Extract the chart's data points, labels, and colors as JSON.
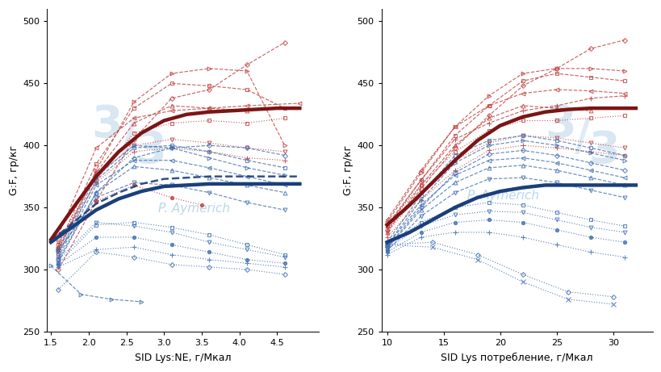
{
  "background_color": "#ffffff",
  "watermark_text": "P. Aymerich",
  "ylabel": "G:F, гр/кг",
  "xlabel1": "SID Lys:NE, г/Мкал",
  "xlabel2": "SID Lys потребление, г/Мкал",
  "ylim": [
    250,
    510
  ],
  "yticks": [
    250,
    300,
    350,
    400,
    450,
    500
  ],
  "xlim1": [
    1.45,
    5.05
  ],
  "xticks1": [
    1.5,
    2.0,
    2.5,
    3.0,
    3.5,
    4.0,
    4.5
  ],
  "xlim2": [
    9.5,
    33.5
  ],
  "xticks2": [
    10,
    15,
    20,
    25,
    30
  ],
  "male_color": "#7B1515",
  "female_color": "#1A3F7A",
  "male_color_light": "#C04040",
  "female_color_light": "#4070B0",
  "plot1_red_solid_x": [
    1.5,
    1.8,
    2.1,
    2.4,
    2.7,
    3.0,
    3.3,
    3.6,
    3.9,
    4.2,
    4.5,
    4.8
  ],
  "plot1_red_solid_y": [
    324,
    350,
    375,
    395,
    410,
    420,
    425,
    427,
    428,
    429,
    430,
    430
  ],
  "plot1_blue_solid_x": [
    1.5,
    1.8,
    2.1,
    2.4,
    2.7,
    3.0,
    3.3,
    3.6,
    3.9,
    4.2,
    4.5,
    4.8
  ],
  "plot1_blue_solid_y": [
    322,
    335,
    348,
    357,
    363,
    367,
    368,
    369,
    369,
    369,
    369,
    369
  ],
  "plot1_blue_dashed_x": [
    1.5,
    1.8,
    2.1,
    2.4,
    2.7,
    3.0,
    3.3,
    3.6,
    3.9,
    4.2,
    4.5,
    4.8
  ],
  "plot1_blue_dashed_y": [
    323,
    338,
    353,
    362,
    369,
    373,
    374,
    375,
    375,
    375,
    375,
    375
  ],
  "plot2_red_solid_x": [
    10,
    12,
    14,
    16,
    18,
    20,
    22,
    24,
    26,
    28,
    30,
    32
  ],
  "plot2_red_solid_y": [
    336,
    352,
    370,
    388,
    404,
    416,
    423,
    427,
    429,
    430,
    430,
    430
  ],
  "plot2_blue_solid_x": [
    10,
    12,
    14,
    16,
    18,
    20,
    22,
    24,
    26,
    28,
    30,
    32
  ],
  "plot2_blue_solid_y": [
    322,
    330,
    340,
    350,
    358,
    363,
    366,
    368,
    368,
    368,
    368,
    368
  ],
  "red_lines_plot1": [
    {
      "x": [
        1.6,
        2.1,
        2.6,
        3.1,
        3.6,
        4.1,
        4.6
      ],
      "y": [
        320,
        385,
        430,
        450,
        448,
        445,
        430
      ],
      "style": "--",
      "marker": "s",
      "ms": 3.5
    },
    {
      "x": [
        1.6,
        2.1,
        2.6,
        3.1,
        3.6,
        4.1,
        4.6
      ],
      "y": [
        315,
        380,
        435,
        458,
        462,
        460,
        400
      ],
      "style": "--",
      "marker": ">",
      "ms": 3.5
    },
    {
      "x": [
        1.6,
        2.1,
        2.6,
        3.1,
        3.6,
        4.1,
        4.6
      ],
      "y": [
        300,
        355,
        405,
        438,
        445,
        465,
        483
      ],
      "style": "--",
      "marker": "D",
      "ms": 3.0
    },
    {
      "x": [
        1.6,
        2.1,
        2.6,
        3.1,
        3.6,
        4.1,
        4.8
      ],
      "y": [
        328,
        398,
        422,
        428,
        430,
        432,
        434
      ],
      "style": "--",
      "marker": "<",
      "ms": 3.5
    },
    {
      "x": [
        1.6,
        2.1,
        2.6,
        3.1,
        3.6,
        4.1
      ],
      "y": [
        318,
        378,
        418,
        432,
        430,
        428
      ],
      "style": "--",
      "marker": "^",
      "ms": 3.5
    },
    {
      "x": [
        1.6,
        2.1,
        2.6,
        3.1,
        3.6,
        4.1,
        4.6
      ],
      "y": [
        312,
        372,
        410,
        418,
        420,
        418,
        422
      ],
      "style": ":",
      "marker": "s",
      "ms": 3.0
    },
    {
      "x": [
        1.6,
        2.1,
        2.6,
        3.1,
        3.6,
        4.1,
        4.6
      ],
      "y": [
        322,
        376,
        400,
        405,
        402,
        398,
        395
      ],
      "style": ":",
      "marker": "v",
      "ms": 3.5
    },
    {
      "x": [
        1.6,
        2.1,
        2.6,
        3.1,
        3.6,
        4.1,
        4.6
      ],
      "y": [
        318,
        370,
        395,
        398,
        395,
        390,
        388
      ],
      "style": ":",
      "marker": "+",
      "ms": 4.0
    },
    {
      "x": [
        1.6,
        2.1,
        2.6,
        3.1,
        3.5
      ],
      "y": [
        316,
        355,
        368,
        358,
        352
      ],
      "style": ":",
      "marker": "o",
      "ms": 3.0
    }
  ],
  "blue_lines_plot1": [
    {
      "x": [
        1.6,
        2.1,
        2.6,
        3.1,
        3.6,
        4.1,
        4.6
      ],
      "y": [
        313,
        372,
        398,
        400,
        395,
        388,
        382
      ],
      "style": "--",
      "marker": "s",
      "ms": 3.5
    },
    {
      "x": [
        1.6,
        2.1,
        2.6,
        3.1,
        3.6,
        4.1,
        4.6
      ],
      "y": [
        316,
        375,
        400,
        398,
        390,
        382,
        376
      ],
      "style": "--",
      "marker": ">",
      "ms": 3.5
    },
    {
      "x": [
        1.6,
        2.1,
        2.6,
        3.1,
        3.6,
        4.1,
        4.6
      ],
      "y": [
        308,
        362,
        390,
        398,
        400,
        398,
        392
      ],
      "style": "--",
      "marker": "D",
      "ms": 3.0
    },
    {
      "x": [
        1.6,
        2.1,
        2.6,
        3.1,
        3.6,
        4.1,
        4.6
      ],
      "y": [
        310,
        368,
        388,
        388,
        382,
        375,
        368
      ],
      "style": "--",
      "marker": "<",
      "ms": 3.5
    },
    {
      "x": [
        1.6,
        2.1,
        2.6,
        3.1,
        3.6,
        4.1,
        4.6
      ],
      "y": [
        306,
        362,
        383,
        380,
        374,
        368,
        362
      ],
      "style": "--",
      "marker": "^",
      "ms": 3.5
    },
    {
      "x": [
        1.6,
        2.1,
        2.6,
        3.1,
        3.6,
        4.1,
        4.6
      ],
      "y": [
        315,
        358,
        370,
        368,
        362,
        354,
        348
      ],
      "style": "--",
      "marker": "v",
      "ms": 3.5
    },
    {
      "x": [
        1.6,
        2.1,
        2.6,
        3.1,
        3.6,
        4.1,
        4.6
      ],
      "y": [
        305,
        336,
        338,
        334,
        328,
        320,
        312
      ],
      "style": ":",
      "marker": "s",
      "ms": 3.0
    },
    {
      "x": [
        1.6,
        2.1,
        2.6,
        3.1,
        3.6,
        4.1,
        4.6
      ],
      "y": [
        308,
        338,
        335,
        330,
        322,
        316,
        310
      ],
      "style": ":",
      "marker": "v",
      "ms": 3.5
    },
    {
      "x": [
        1.6,
        2.1,
        2.6,
        3.1,
        3.6,
        4.1,
        4.6
      ],
      "y": [
        304,
        326,
        326,
        320,
        314,
        308,
        305
      ],
      "style": ":",
      "marker": "o",
      "ms": 3.0
    },
    {
      "x": [
        1.6,
        2.1,
        2.6,
        3.1,
        3.6,
        4.1,
        4.6
      ],
      "y": [
        302,
        316,
        318,
        312,
        308,
        305,
        302
      ],
      "style": ":",
      "marker": "+",
      "ms": 4.0
    },
    {
      "x": [
        1.6,
        2.1,
        2.6,
        3.1,
        3.6,
        4.1,
        4.6
      ],
      "y": [
        284,
        314,
        310,
        304,
        302,
        300,
        296
      ],
      "style": ":",
      "marker": "D",
      "ms": 3.0
    },
    {
      "x": [
        1.5,
        1.9,
        2.3,
        2.7
      ],
      "y": [
        303,
        280,
        276,
        274
      ],
      "style": "--",
      "marker": ">",
      "ms": 3.5
    }
  ],
  "red_lines_plot2": [
    {
      "x": [
        10,
        13,
        16,
        19,
        22,
        25,
        28,
        31
      ],
      "y": [
        338,
        378,
        415,
        440,
        458,
        462,
        462,
        460
      ],
      "style": "--",
      "marker": ">",
      "ms": 3.5
    },
    {
      "x": [
        10,
        13,
        16,
        19,
        22,
        25,
        28,
        31
      ],
      "y": [
        336,
        372,
        408,
        432,
        452,
        458,
        455,
        452
      ],
      "style": "--",
      "marker": "s",
      "ms": 3.5
    },
    {
      "x": [
        10,
        13,
        16,
        19,
        22,
        25,
        28,
        31
      ],
      "y": [
        332,
        365,
        398,
        424,
        448,
        462,
        478,
        485
      ],
      "style": "--",
      "marker": "D",
      "ms": 3.0
    },
    {
      "x": [
        10,
        13,
        16,
        19,
        22,
        25,
        28,
        31
      ],
      "y": [
        340,
        380,
        415,
        432,
        442,
        445,
        444,
        442
      ],
      "style": "--",
      "marker": "<",
      "ms": 3.5
    },
    {
      "x": [
        10,
        13,
        16,
        19,
        22,
        25,
        28
      ],
      "y": [
        330,
        368,
        400,
        422,
        432,
        430,
        428
      ],
      "style": "--",
      "marker": "^",
      "ms": 3.5
    },
    {
      "x": [
        10,
        13,
        16,
        19,
        22,
        25,
        28,
        31
      ],
      "y": [
        334,
        372,
        405,
        418,
        428,
        432,
        438,
        440
      ],
      "style": "--",
      "marker": "+",
      "ms": 4.0
    },
    {
      "x": [
        10,
        13,
        16,
        19,
        22,
        25,
        28,
        31
      ],
      "y": [
        336,
        368,
        395,
        412,
        420,
        420,
        422,
        424
      ],
      "style": ":",
      "marker": "s",
      "ms": 3.0
    },
    {
      "x": [
        10,
        13,
        16,
        19,
        22,
        25,
        28,
        31
      ],
      "y": [
        330,
        362,
        388,
        402,
        408,
        406,
        402,
        398
      ],
      "style": ":",
      "marker": "v",
      "ms": 3.5
    },
    {
      "x": [
        10,
        13,
        16,
        19,
        22,
        25,
        28,
        31
      ],
      "y": [
        326,
        356,
        380,
        396,
        400,
        398,
        395,
        392
      ],
      "style": ":",
      "marker": "+",
      "ms": 4.0
    }
  ],
  "blue_lines_plot2": [
    {
      "x": [
        10,
        13,
        16,
        19,
        22,
        25,
        28,
        31
      ],
      "y": [
        322,
        360,
        392,
        404,
        408,
        404,
        398,
        392
      ],
      "style": "--",
      "marker": "s",
      "ms": 3.5
    },
    {
      "x": [
        10,
        13,
        16,
        19,
        22,
        25,
        28,
        31
      ],
      "y": [
        320,
        356,
        386,
        400,
        404,
        400,
        394,
        388
      ],
      "style": "--",
      "marker": ">",
      "ms": 3.5
    },
    {
      "x": [
        10,
        13,
        16,
        19,
        22,
        25,
        28,
        31
      ],
      "y": [
        318,
        350,
        378,
        393,
        396,
        392,
        386,
        380
      ],
      "style": "--",
      "marker": "D",
      "ms": 3.0
    },
    {
      "x": [
        10,
        13,
        16,
        19,
        22,
        25,
        28,
        31
      ],
      "y": [
        320,
        352,
        376,
        388,
        390,
        386,
        380,
        374
      ],
      "style": "--",
      "marker": "<",
      "ms": 3.5
    },
    {
      "x": [
        10,
        13,
        16,
        19,
        22,
        25,
        28,
        31
      ],
      "y": [
        317,
        348,
        370,
        382,
        384,
        380,
        374,
        368
      ],
      "style": "--",
      "marker": "^",
      "ms": 3.5
    },
    {
      "x": [
        10,
        13,
        16,
        19,
        22,
        25,
        28,
        31
      ],
      "y": [
        315,
        343,
        362,
        373,
        374,
        370,
        364,
        358
      ],
      "style": "--",
      "marker": "v",
      "ms": 3.5
    },
    {
      "x": [
        10,
        13,
        16,
        19,
        22,
        25,
        28,
        31
      ],
      "y": [
        319,
        338,
        350,
        354,
        352,
        346,
        340,
        335
      ],
      "style": ":",
      "marker": "s",
      "ms": 3.0
    },
    {
      "x": [
        10,
        13,
        16,
        19,
        22,
        25,
        28,
        31
      ],
      "y": [
        317,
        335,
        344,
        347,
        346,
        340,
        334,
        330
      ],
      "style": ":",
      "marker": "v",
      "ms": 3.5
    },
    {
      "x": [
        10,
        13,
        16,
        19,
        22,
        25,
        28,
        31
      ],
      "y": [
        314,
        330,
        338,
        340,
        338,
        332,
        326,
        322
      ],
      "style": ":",
      "marker": "o",
      "ms": 3.0
    },
    {
      "x": [
        10,
        13,
        16,
        19,
        22,
        25,
        28,
        31
      ],
      "y": [
        312,
        326,
        330,
        330,
        326,
        320,
        314,
        310
      ],
      "style": ":",
      "marker": "+",
      "ms": 4.0
    },
    {
      "x": [
        10,
        14,
        18,
        22,
        26,
        30
      ],
      "y": [
        320,
        322,
        312,
        296,
        282,
        278
      ],
      "style": ":",
      "marker": "D",
      "ms": 3.0
    },
    {
      "x": [
        10,
        14,
        18,
        22,
        26,
        30
      ],
      "y": [
        320,
        318,
        308,
        290,
        276,
        272
      ],
      "style": ":",
      "marker": "x",
      "ms": 4.0
    }
  ]
}
